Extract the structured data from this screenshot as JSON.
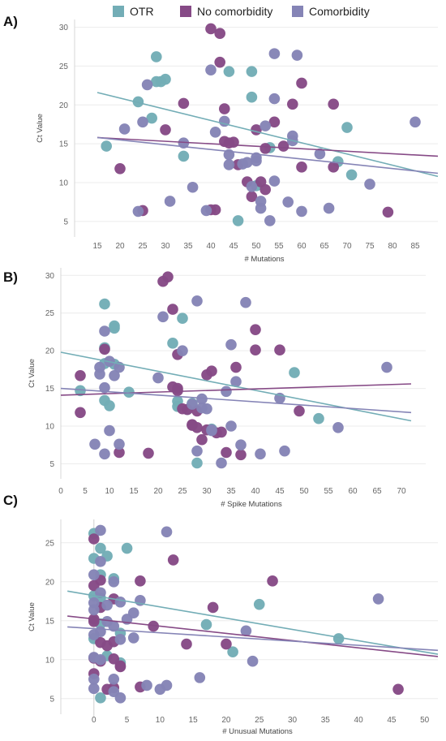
{
  "legend": [
    {
      "label": "OTR",
      "color": "#73ADB6"
    },
    {
      "label": "No comorbidity",
      "color": "#864A86"
    },
    {
      "label": "Comorbidity",
      "color": "#8584B6"
    }
  ],
  "chart_data": [
    {
      "panel": "A)",
      "type": "scatter",
      "xlabel": "# Mutations",
      "ylabel": "Ct Value",
      "xlim": [
        10,
        90
      ],
      "ylim": [
        3,
        31
      ],
      "xticks": [
        15,
        20,
        25,
        30,
        35,
        40,
        45,
        50,
        55,
        60,
        65,
        70,
        75,
        80,
        85
      ],
      "yticks": [
        5,
        10,
        15,
        20,
        25,
        30
      ],
      "series": [
        {
          "name": "OTR",
          "color": "#73ADB6",
          "x": [
            17,
            28,
            30,
            24,
            27,
            29,
            34,
            44,
            49,
            49,
            70,
            68,
            71,
            53,
            46,
            28,
            50
          ],
          "y": [
            14.7,
            26.2,
            23.3,
            20.4,
            18.3,
            23.0,
            13.4,
            24.3,
            24.3,
            21.0,
            17.1,
            12.7,
            11.0,
            14.5,
            5.1,
            23.0,
            9.6
          ],
          "trend": [
            [
              15,
              21.6
            ],
            [
              90,
              10.8
            ]
          ]
        },
        {
          "name": "No comorbidity",
          "color": "#864A86",
          "x": [
            20,
            25,
            30,
            34,
            40,
            42,
            41,
            42,
            43,
            45,
            46,
            48,
            49,
            50,
            51,
            52,
            52,
            54,
            56,
            58,
            60,
            60,
            67,
            67,
            79,
            40,
            43,
            44
          ],
          "y": [
            11.8,
            6.4,
            16.8,
            20.2,
            29.8,
            29.2,
            6.5,
            25.5,
            19.5,
            15.2,
            12.3,
            10.1,
            8.2,
            16.8,
            10.1,
            9.1,
            14.4,
            17.8,
            14.7,
            20.1,
            12.0,
            22.8,
            20.1,
            12.0,
            6.2,
            6.5,
            15.3,
            15.1
          ],
          "trend": [
            [
              15,
              15.8
            ],
            [
              90,
              13.4
            ]
          ]
        },
        {
          "name": "Comorbidity",
          "color": "#8584B6",
          "x": [
            21,
            25,
            26,
            24,
            31,
            34,
            36,
            39,
            40,
            41,
            43,
            44,
            44,
            47,
            48,
            49,
            50,
            50,
            51,
            51,
            52,
            53,
            54,
            54,
            57,
            58,
            58,
            59,
            60,
            64,
            66,
            75,
            85,
            54
          ],
          "y": [
            16.9,
            17.8,
            22.6,
            6.3,
            7.6,
            15.1,
            9.4,
            6.4,
            24.5,
            16.5,
            17.9,
            13.6,
            12.3,
            12.4,
            12.6,
            9.5,
            12.8,
            13.2,
            7.6,
            6.7,
            17.3,
            5.1,
            26.6,
            20.8,
            7.5,
            16.0,
            15.4,
            26.4,
            6.3,
            13.7,
            6.7,
            9.8,
            17.8,
            10.2
          ],
          "trend": [
            [
              15,
              15.8
            ],
            [
              90,
              11.2
            ]
          ]
        }
      ]
    },
    {
      "panel": "B)",
      "type": "scatter",
      "xlabel": "# Spike Mutations",
      "ylabel": "Ct Value",
      "xlim": [
        0,
        75
      ],
      "ylim": [
        3,
        31
      ],
      "xticks": [
        0,
        5,
        10,
        15,
        20,
        25,
        30,
        35,
        40,
        45,
        50,
        55,
        60,
        65,
        70
      ],
      "yticks": [
        5,
        10,
        15,
        20,
        25,
        30
      ],
      "series": [
        {
          "name": "OTR",
          "color": "#73ADB6",
          "x": [
            4,
            9,
            9,
            9,
            9,
            10,
            11,
            11,
            11,
            14,
            23,
            25,
            26,
            27,
            28,
            31,
            48,
            53,
            24,
            24
          ],
          "y": [
            14.7,
            26.2,
            20.4,
            18.3,
            13.4,
            12.7,
            23.3,
            23.0,
            18.2,
            14.5,
            21.0,
            24.3,
            12.2,
            13.0,
            5.1,
            9.6,
            17.1,
            11.0,
            13.3,
            12.6
          ],
          "trend": [
            [
              0,
              19.8
            ],
            [
              72,
              10.7
            ]
          ]
        },
        {
          "name": "No comorbidity",
          "color": "#864A86",
          "x": [
            4,
            4,
            9,
            12,
            18,
            21,
            22,
            23,
            23,
            24,
            24,
            24,
            25,
            26,
            27,
            27,
            28,
            28,
            30,
            30,
            29,
            31,
            32,
            33,
            34,
            36,
            37,
            40,
            40,
            45,
            49
          ],
          "y": [
            16.7,
            11.8,
            20.2,
            6.5,
            6.4,
            29.2,
            29.8,
            25.5,
            15.2,
            19.5,
            15.0,
            14.7,
            12.3,
            12.2,
            10.2,
            10.1,
            9.8,
            12.0,
            16.8,
            9.5,
            8.2,
            17.3,
            9.1,
            9.2,
            6.5,
            17.8,
            6.2,
            22.8,
            20.1,
            20.1,
            12.0
          ],
          "trend": [
            [
              0,
              14.1
            ],
            [
              72,
              15.6
            ]
          ]
        },
        {
          "name": "Comorbidity",
          "color": "#8584B6",
          "x": [
            7,
            8,
            8,
            9,
            9,
            9,
            10,
            10,
            11,
            12,
            12,
            20,
            21,
            25,
            27,
            28,
            28,
            29,
            29,
            30,
            31,
            33,
            34,
            35,
            35,
            36,
            37,
            38,
            41,
            45,
            46,
            57,
            67,
            31
          ],
          "y": [
            7.6,
            17.8,
            16.9,
            22.6,
            15.1,
            6.3,
            18.6,
            9.4,
            16.7,
            17.8,
            7.6,
            16.4,
            24.5,
            20.0,
            12.9,
            26.6,
            6.7,
            13.6,
            12.4,
            12.3,
            9.5,
            5.1,
            14.6,
            20.8,
            10.0,
            15.9,
            7.5,
            26.4,
            6.3,
            13.7,
            6.7,
            9.8,
            17.8,
            9.4
          ],
          "trend": [
            [
              0,
              15.0
            ],
            [
              72,
              11.8
            ]
          ]
        }
      ]
    },
    {
      "panel": "C)",
      "type": "scatter",
      "xlabel": "# Unusual Mutations",
      "ylabel": "Ct Value",
      "xlim": [
        -5,
        52
      ],
      "ylim": [
        3,
        28
      ],
      "xticks": [
        0,
        5,
        10,
        15,
        20,
        25,
        30,
        35,
        40,
        45,
        50
      ],
      "yticks": [
        5,
        10,
        15,
        20,
        25
      ],
      "series": [
        {
          "name": "OTR",
          "color": "#73ADB6",
          "x": [
            0,
            0,
            0,
            1,
            1,
            1,
            1,
            2,
            2,
            4,
            4,
            5,
            17,
            21,
            25,
            37,
            3,
            0,
            1
          ],
          "y": [
            26.2,
            23.0,
            18.2,
            24.3,
            17.9,
            14.6,
            5.1,
            23.3,
            10.5,
            13.4,
            9.6,
            24.3,
            14.5,
            11.0,
            17.1,
            12.7,
            20.4,
            12.7,
            20.9
          ],
          "trend": [
            [
              -4,
              18.8
            ],
            [
              52,
              10.7
            ]
          ]
        },
        {
          "name": "No comorbidity",
          "color": "#864A86",
          "x": [
            0,
            0,
            0,
            0,
            0,
            1,
            1,
            1,
            2,
            2,
            3,
            3,
            3,
            3,
            4,
            4,
            7,
            7,
            9,
            12,
            14,
            18,
            20,
            27,
            46,
            0,
            1
          ],
          "y": [
            25.5,
            19.5,
            15.2,
            10.2,
            8.2,
            20.2,
            16.7,
            12.2,
            11.8,
            6.2,
            17.8,
            12.3,
            10.1,
            6.4,
            9.1,
            9.2,
            20.1,
            6.5,
            14.3,
            22.8,
            12.0,
            16.7,
            12.0,
            20.1,
            6.2,
            14.9,
            9.8
          ],
          "trend": [
            [
              -4,
              15.6
            ],
            [
              52,
              10.4
            ]
          ]
        },
        {
          "name": "Comorbidity",
          "color": "#8584B6",
          "x": [
            0,
            0,
            0,
            0,
            0,
            0,
            1,
            1,
            1,
            1,
            1,
            2,
            3,
            3,
            3,
            3,
            4,
            4,
            4,
            5,
            6,
            6,
            7,
            8,
            10,
            11,
            11,
            16,
            23,
            24,
            43,
            0,
            2
          ],
          "y": [
            20.9,
            17.3,
            16.4,
            13.2,
            7.5,
            6.3,
            26.6,
            22.6,
            18.6,
            13.6,
            10.0,
            17.0,
            20.0,
            14.3,
            7.5,
            5.9,
            17.4,
            12.6,
            5.1,
            15.2,
            16.0,
            12.8,
            17.6,
            6.7,
            6.2,
            26.4,
            6.7,
            7.7,
            13.7,
            9.8,
            17.8,
            10.3,
            14.9
          ],
          "trend": [
            [
              -4,
              14.2
            ],
            [
              52,
              11.2
            ]
          ]
        }
      ]
    }
  ]
}
